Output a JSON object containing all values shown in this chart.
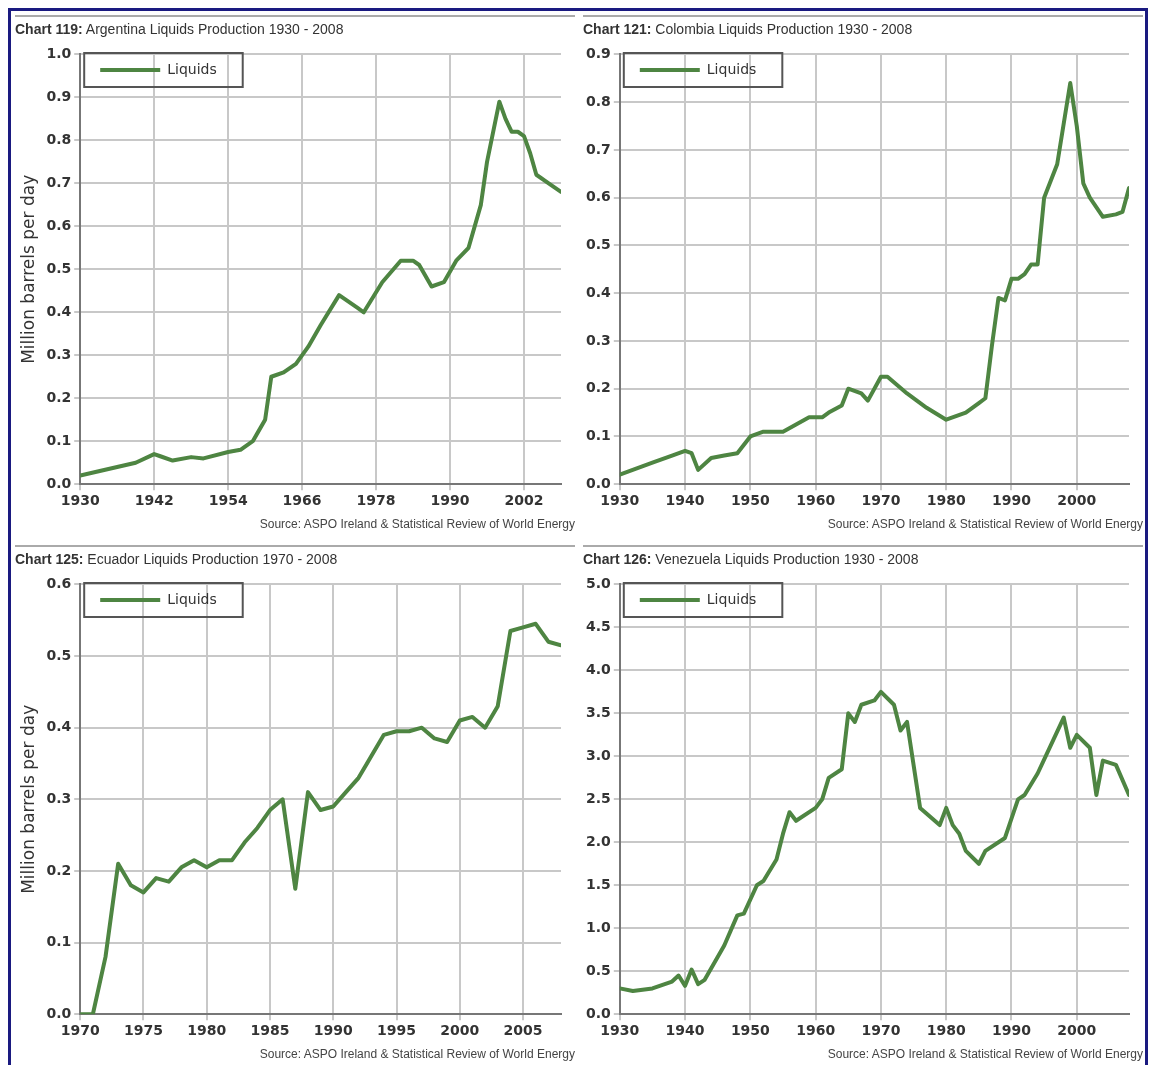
{
  "chart_data": [
    {
      "type": "line",
      "title": "Chart 119: Argentina Liquids Production 1930 - 2008",
      "ylabel": "Million barrels per day",
      "legend": "top left",
      "grid": true,
      "marker": "none",
      "line_style": "solid",
      "xlim": [
        1930,
        2008
      ],
      "xticks": [
        1930,
        1942,
        1954,
        1966,
        1978,
        1990,
        2002
      ],
      "ylim": [
        0,
        1
      ],
      "yticks": [
        {
          "value": 0,
          "label": "0.0"
        },
        0.1,
        0.2,
        0.3,
        0.4,
        0.5,
        0.6,
        0.7,
        0.8,
        0.9,
        {
          "value": 1,
          "label": "1.0"
        }
      ],
      "annotations": [
        "Source: ASPO Ireland & Statistical Review of World Energy"
      ],
      "x": [
        1930,
        1933,
        1936,
        1939,
        1942,
        1943,
        1945,
        1948,
        1950,
        1954,
        1956,
        1958,
        1960,
        1961,
        1963,
        1965,
        1967,
        1969,
        1972,
        1975,
        1976,
        1979,
        1982,
        1984,
        1985,
        1987,
        1989,
        1991,
        1993,
        1995,
        1996,
        1998,
        1999,
        2000,
        2001,
        2002,
        2003,
        2004,
        2006,
        2008
      ],
      "series": [
        {
          "name": "Liquids",
          "color": "#4e8542",
          "values": [
            0.02,
            0.03,
            0.04,
            0.05,
            0.07,
            0.065,
            0.055,
            0.063,
            0.06,
            0.075,
            0.08,
            0.1,
            0.15,
            0.25,
            0.26,
            0.28,
            0.32,
            0.37,
            0.44,
            0.41,
            0.4,
            0.47,
            0.52,
            0.52,
            0.51,
            0.46,
            0.47,
            0.52,
            0.55,
            0.65,
            0.75,
            0.89,
            0.85,
            0.82,
            0.82,
            0.81,
            0.77,
            0.72,
            0.7,
            0.68
          ]
        }
      ]
    },
    {
      "type": "line",
      "title": "Chart 121: Colombia Liquids Production 1930 - 2008",
      "legend": "top left",
      "grid": true,
      "marker": "none",
      "line_style": "solid",
      "xlim": [
        1930,
        2008
      ],
      "xticks": [
        1930,
        1940,
        1950,
        1960,
        1970,
        1980,
        1990,
        2000
      ],
      "ylim": [
        0,
        0.9
      ],
      "yticks": [
        {
          "value": 0,
          "label": "0.0"
        },
        0.1,
        0.2,
        0.3,
        0.4,
        0.5,
        0.6,
        0.7,
        0.8,
        0.9
      ],
      "annotations": [
        "Source: ASPO Ireland & Statistical Review of World Energy"
      ],
      "x": [
        1930,
        1935,
        1938,
        1940,
        1941,
        1942,
        1944,
        1946,
        1948,
        1950,
        1952,
        1955,
        1957,
        1959,
        1961,
        1962,
        1964,
        1965,
        1967,
        1968,
        1970,
        1971,
        1974,
        1977,
        1980,
        1983,
        1985,
        1986,
        1987,
        1988,
        1989,
        1990,
        1991,
        1992,
        1993,
        1994,
        1995,
        1997,
        1999,
        2000,
        2001,
        2002,
        2004,
        2006,
        2007,
        2008
      ],
      "series": [
        {
          "name": "Liquids",
          "color": "#4e8542",
          "values": [
            0.02,
            0.045,
            0.06,
            0.07,
            0.065,
            0.03,
            0.055,
            0.06,
            0.065,
            0.1,
            0.11,
            0.11,
            0.125,
            0.14,
            0.14,
            0.15,
            0.165,
            0.2,
            0.19,
            0.175,
            0.225,
            0.225,
            0.19,
            0.16,
            0.135,
            0.15,
            0.17,
            0.18,
            0.29,
            0.39,
            0.385,
            0.43,
            0.43,
            0.44,
            0.46,
            0.46,
            0.6,
            0.67,
            0.84,
            0.75,
            0.63,
            0.6,
            0.56,
            0.565,
            0.57,
            0.62
          ]
        }
      ]
    },
    {
      "type": "line",
      "title": "Chart 125: Ecuador Liquids Production 1970 - 2008",
      "ylabel": "Million barrels per day",
      "legend": "top left",
      "grid": true,
      "marker": "none",
      "line_style": "solid",
      "xlim": [
        1970,
        2008
      ],
      "xticks": [
        1970,
        1975,
        1980,
        1985,
        1990,
        1995,
        2000,
        2005
      ],
      "ylim": [
        0,
        0.6
      ],
      "yticks": [
        {
          "value": 0,
          "label": "0.0"
        },
        0.1,
        0.2,
        0.3,
        0.4,
        0.5,
        0.6
      ],
      "annotations": [
        "Source: ASPO Ireland & Statistical Review of World Energy"
      ],
      "x": [
        1970,
        1971,
        1972,
        1973,
        1974,
        1975,
        1976,
        1977,
        1978,
        1979,
        1980,
        1981,
        1982,
        1983,
        1984,
        1985,
        1986,
        1987,
        1988,
        1989,
        1990,
        1991,
        1992,
        1993,
        1994,
        1995,
        1996,
        1997,
        1998,
        1999,
        2000,
        2001,
        2002,
        2003,
        2004,
        2005,
        2006,
        2007,
        2008
      ],
      "series": [
        {
          "name": "Liquids",
          "color": "#4e8542",
          "values": [
            0,
            0,
            0.08,
            0.21,
            0.18,
            0.17,
            0.19,
            0.185,
            0.205,
            0.215,
            0.205,
            0.215,
            0.215,
            0.24,
            0.26,
            0.285,
            0.3,
            0.175,
            0.31,
            0.285,
            0.29,
            0.31,
            0.33,
            0.36,
            0.39,
            0.395,
            0.395,
            0.4,
            0.385,
            0.38,
            0.41,
            0.415,
            0.4,
            0.43,
            0.535,
            0.54,
            0.545,
            0.52,
            0.515
          ]
        }
      ]
    },
    {
      "type": "line",
      "title": "Chart 126: Venezuela Liquids Production 1930 - 2008",
      "legend": "top left",
      "grid": true,
      "marker": "none",
      "line_style": "solid",
      "xlim": [
        1930,
        2008
      ],
      "xticks": [
        1930,
        1940,
        1950,
        1960,
        1970,
        1980,
        1990,
        2000
      ],
      "ylim": [
        0,
        5
      ],
      "yticks": [
        {
          "value": 0,
          "label": "0.0"
        },
        0.5,
        {
          "value": 1,
          "label": "1.0"
        },
        1.5,
        {
          "value": 2,
          "label": "2.0"
        },
        2.5,
        {
          "value": 3,
          "label": "3.0"
        },
        3.5,
        {
          "value": 4,
          "label": "4.0"
        },
        4.5,
        {
          "value": 5,
          "label": "5.0"
        }
      ],
      "annotations": [
        "Source: ASPO Ireland & Statistical Review of World Energy"
      ],
      "x": [
        1930,
        1932,
        1935,
        1938,
        1939,
        1940,
        1941,
        1942,
        1943,
        1946,
        1948,
        1949,
        1951,
        1952,
        1954,
        1955,
        1956,
        1957,
        1960,
        1961,
        1962,
        1964,
        1965,
        1966,
        1967,
        1969,
        1970,
        1972,
        1973,
        1974,
        1976,
        1979,
        1980,
        1981,
        1982,
        1983,
        1985,
        1986,
        1989,
        1991,
        1992,
        1994,
        1998,
        1999,
        2000,
        2002,
        2003,
        2004,
        2006,
        2008
      ],
      "series": [
        {
          "name": "Liquids",
          "color": "#4e8542",
          "values": [
            0.3,
            0.27,
            0.3,
            0.38,
            0.45,
            0.33,
            0.52,
            0.35,
            0.4,
            0.8,
            1.15,
            1.17,
            1.5,
            1.55,
            1.8,
            2.1,
            2.35,
            2.25,
            2.4,
            2.5,
            2.75,
            2.85,
            3.5,
            3.4,
            3.6,
            3.65,
            3.75,
            3.6,
            3.3,
            3.4,
            2.4,
            2.2,
            2.4,
            2.2,
            2.1,
            1.9,
            1.75,
            1.9,
            2.05,
            2.5,
            2.55,
            2.8,
            3.45,
            3.1,
            3.25,
            3.1,
            2.55,
            2.95,
            2.9,
            2.55
          ]
        }
      ]
    }
  ]
}
